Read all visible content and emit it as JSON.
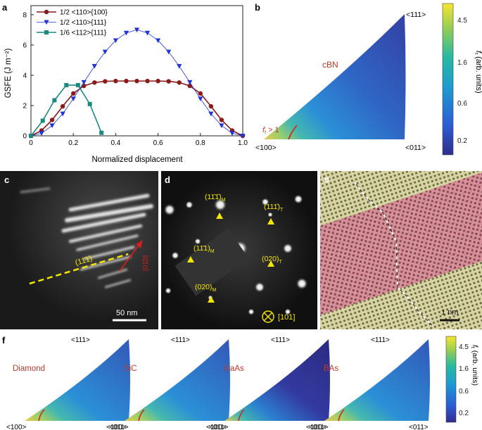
{
  "panels": {
    "a": {
      "label": "a",
      "chart_data": {
        "type": "line",
        "title": "",
        "xlabel": "Normalized displacement",
        "ylabel": "GSFE (J m⁻²)",
        "xlim": [
          0,
          1
        ],
        "ylim": [
          0,
          8.6
        ],
        "xticks": [
          "0",
          "0.2",
          "0.4",
          "0.6",
          "0.8",
          "1.0"
        ],
        "yticks": [
          "0",
          "2",
          "4",
          "6",
          "8"
        ],
        "legend_position": "top-left",
        "series": [
          {
            "name": "1/2 <110>{100}",
            "color": "#8b1a1a",
            "marker": "circle",
            "x": [
              0,
              0.05,
              0.1,
              0.15,
              0.2,
              0.25,
              0.3,
              0.35,
              0.4,
              0.45,
              0.5,
              0.55,
              0.6,
              0.65,
              0.7,
              0.75,
              0.8,
              0.85,
              0.9,
              0.95,
              1.0
            ],
            "y": [
              0,
              0.35,
              1.05,
              1.95,
              2.8,
              3.3,
              3.52,
              3.6,
              3.62,
              3.62,
              3.62,
              3.62,
              3.62,
              3.6,
              3.52,
              3.3,
              2.8,
              1.95,
              1.05,
              0.35,
              0
            ]
          },
          {
            "name": "1/2 <110>{111}",
            "color": "#1f35d6",
            "marker": "triangle-down",
            "x": [
              0,
              0.05,
              0.1,
              0.15,
              0.2,
              0.25,
              0.3,
              0.35,
              0.4,
              0.45,
              0.5,
              0.55,
              0.6,
              0.65,
              0.7,
              0.75,
              0.8,
              0.85,
              0.9,
              0.95,
              1.0
            ],
            "y": [
              0,
              0.17,
              0.68,
              1.46,
              2.45,
              3.54,
              4.6,
              5.55,
              6.3,
              6.8,
              7.0,
              6.8,
              6.3,
              5.55,
              4.6,
              3.54,
              2.45,
              1.46,
              0.68,
              0.17,
              0
            ]
          },
          {
            "name": "1/6 <112>{111}",
            "color": "#1a8a80",
            "marker": "square",
            "x": [
              0,
              0.0556,
              0.111,
              0.167,
              0.222,
              0.278,
              0.333
            ],
            "y": [
              0,
              1.0,
              2.35,
              3.35,
              3.35,
              2.1,
              0.2
            ]
          }
        ]
      }
    },
    "b": {
      "label": "b",
      "material": "cBN",
      "annotation": "f",
      "annotation_sub": "t",
      "annotation_rest": " > 1",
      "corners": {
        "top": "<111>",
        "left": "<100>",
        "right": "<011>"
      },
      "colorbar": {
        "ticks": [
          "4.5",
          "1.6",
          "0.6",
          "0.2"
        ],
        "title": "f",
        "title_sub": "t",
        "title_rest": " (arb. units)"
      }
    },
    "c": {
      "label": "c",
      "plane": "(11̄1̄)",
      "direction": "[01̄0]",
      "scalebar": "50 nm"
    },
    "d": {
      "label": "d",
      "spots": [
        {
          "text": "(11̄1̄)",
          "sub": "M"
        },
        {
          "text": "(111̄)",
          "sub": "T"
        },
        {
          "text": "(11̄1)",
          "sub": "M"
        },
        {
          "text": "(020)",
          "sub": "T"
        },
        {
          "text": "(020)",
          "sub": "M"
        }
      ],
      "zone_axis": "[101]"
    },
    "e": {
      "label": "e",
      "scalebar": "1 nm"
    },
    "f": {
      "label": "f",
      "materials": [
        "Diamond",
        "SiC",
        "GaAs",
        "BAs"
      ],
      "corners": {
        "top": "<111>",
        "left": "<100>",
        "right": "<011>"
      },
      "colorbar": {
        "ticks": [
          "4.5",
          "1.6",
          "0.6",
          "0.2"
        ],
        "title": "f",
        "title_sub": "t",
        "title_rest": " (arb. units)"
      }
    }
  }
}
